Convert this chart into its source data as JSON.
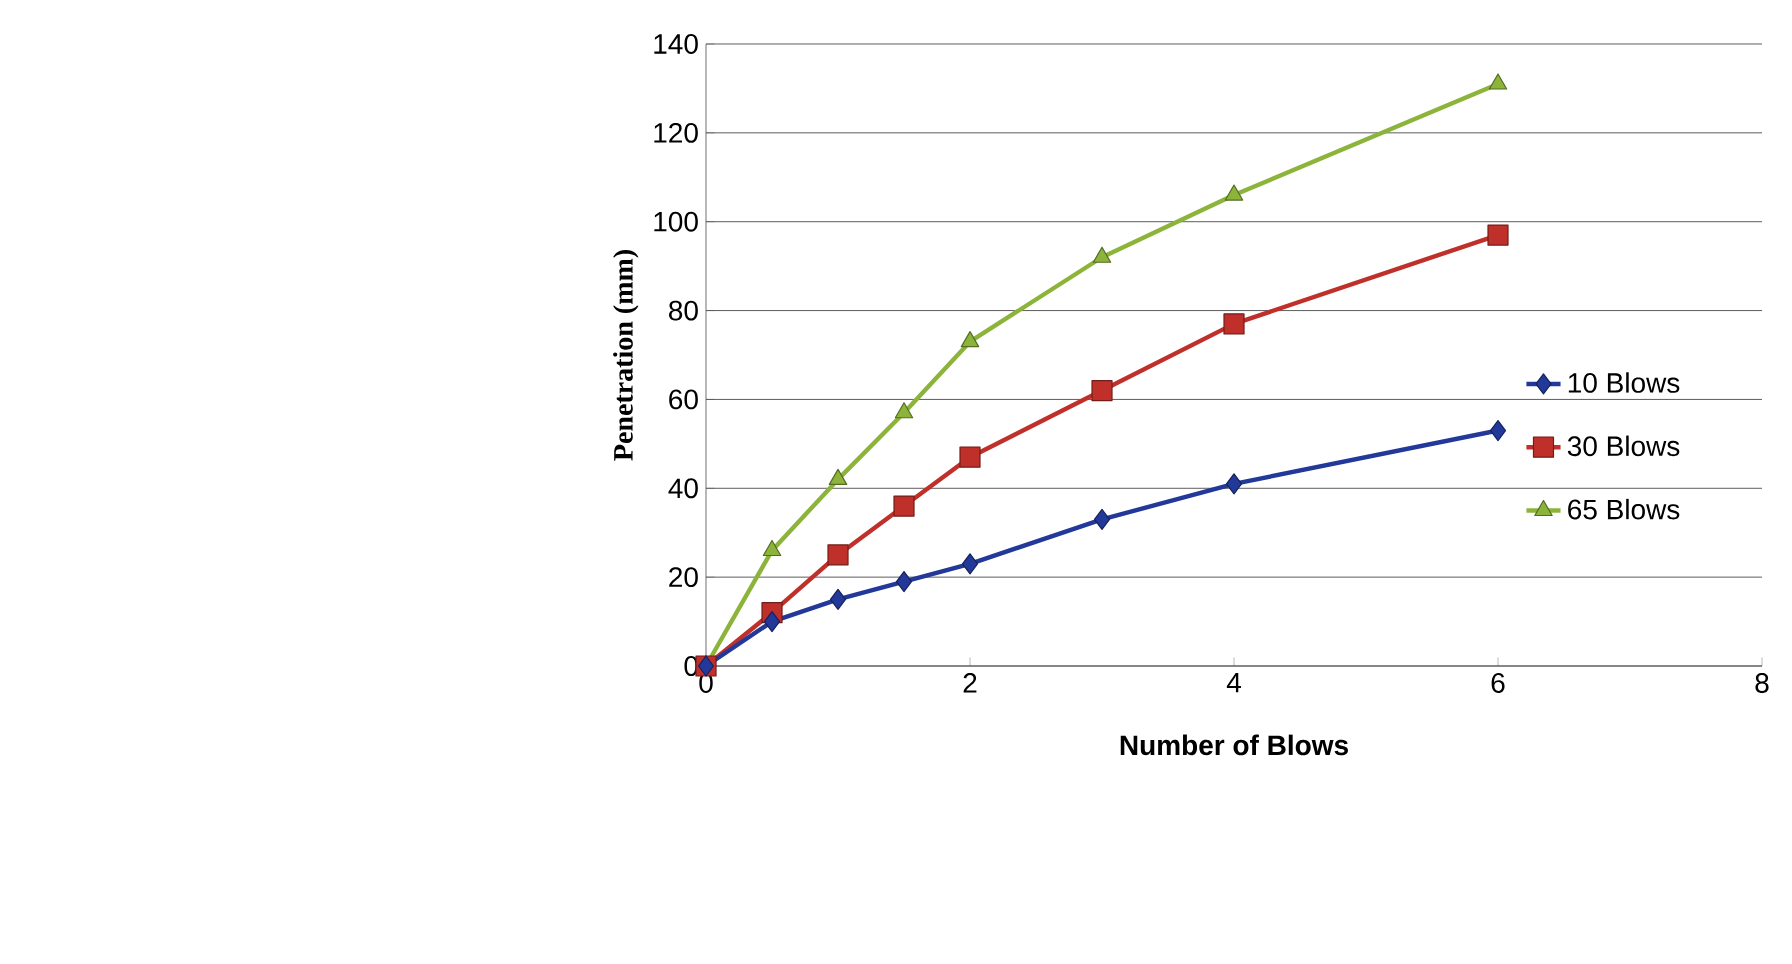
{
  "chart_data": {
    "type": "line",
    "xlabel": "Number of Blows",
    "ylabel": "Penetration (mm)",
    "xlim": [
      0,
      8
    ],
    "xticks": [
      0,
      2,
      4,
      6,
      8
    ],
    "ylim": [
      0,
      140
    ],
    "yticks": [
      0,
      20,
      40,
      60,
      80,
      100,
      120,
      140
    ],
    "grid": "y",
    "legend": "right",
    "line_style": "solid",
    "series": [
      {
        "name": "10 Blows",
        "color": "#22399a",
        "marker": "diamond",
        "x": [
          0,
          0.5,
          1,
          1.5,
          2,
          3,
          4,
          6
        ],
        "values": [
          0,
          10,
          15,
          19,
          23,
          33,
          41,
          53
        ]
      },
      {
        "name": "30 Blows",
        "color": "#c0302b",
        "marker": "square",
        "x": [
          0,
          0.5,
          1,
          1.5,
          2,
          3,
          4,
          6
        ],
        "values": [
          0,
          12,
          25,
          36,
          47,
          62,
          77,
          97
        ]
      },
      {
        "name": "65 Blows",
        "color": "#8cb43a",
        "marker": "triangle",
        "x": [
          0,
          0.5,
          1,
          1.5,
          2,
          3,
          4,
          6
        ],
        "values": [
          0,
          26,
          42,
          57,
          73,
          92,
          106,
          131
        ]
      }
    ]
  }
}
